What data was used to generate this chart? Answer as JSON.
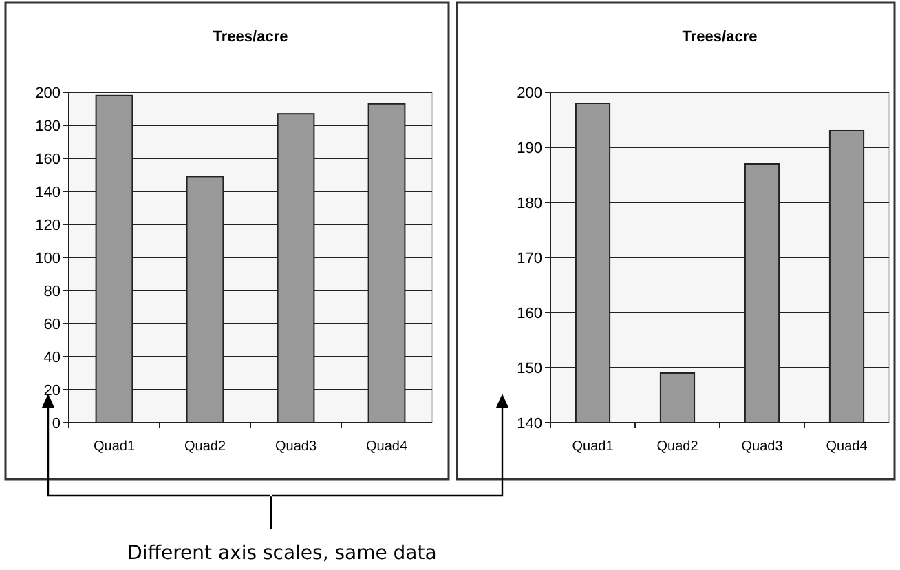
{
  "chart_data": [
    {
      "type": "bar",
      "title": "Trees/acre",
      "categories": [
        "Quad1",
        "Quad2",
        "Quad3",
        "Quad4"
      ],
      "values": [
        198,
        149,
        187,
        193
      ],
      "color": "#999999",
      "ylim": [
        0,
        200
      ],
      "yticks": [
        0,
        20,
        40,
        60,
        80,
        100,
        120,
        140,
        160,
        180,
        200
      ],
      "grid": "y",
      "annotations": [
        "Different axis scales, same data"
      ]
    },
    {
      "type": "bar",
      "title": "Trees/acre",
      "categories": [
        "Quad1",
        "Quad2",
        "Quad3",
        "Quad4"
      ],
      "values": [
        198,
        149,
        187,
        193
      ],
      "color": "#999999",
      "ylim": [
        140,
        200
      ],
      "yticks": [
        140,
        150,
        160,
        170,
        180,
        190,
        200
      ],
      "grid": "y"
    }
  ]
}
